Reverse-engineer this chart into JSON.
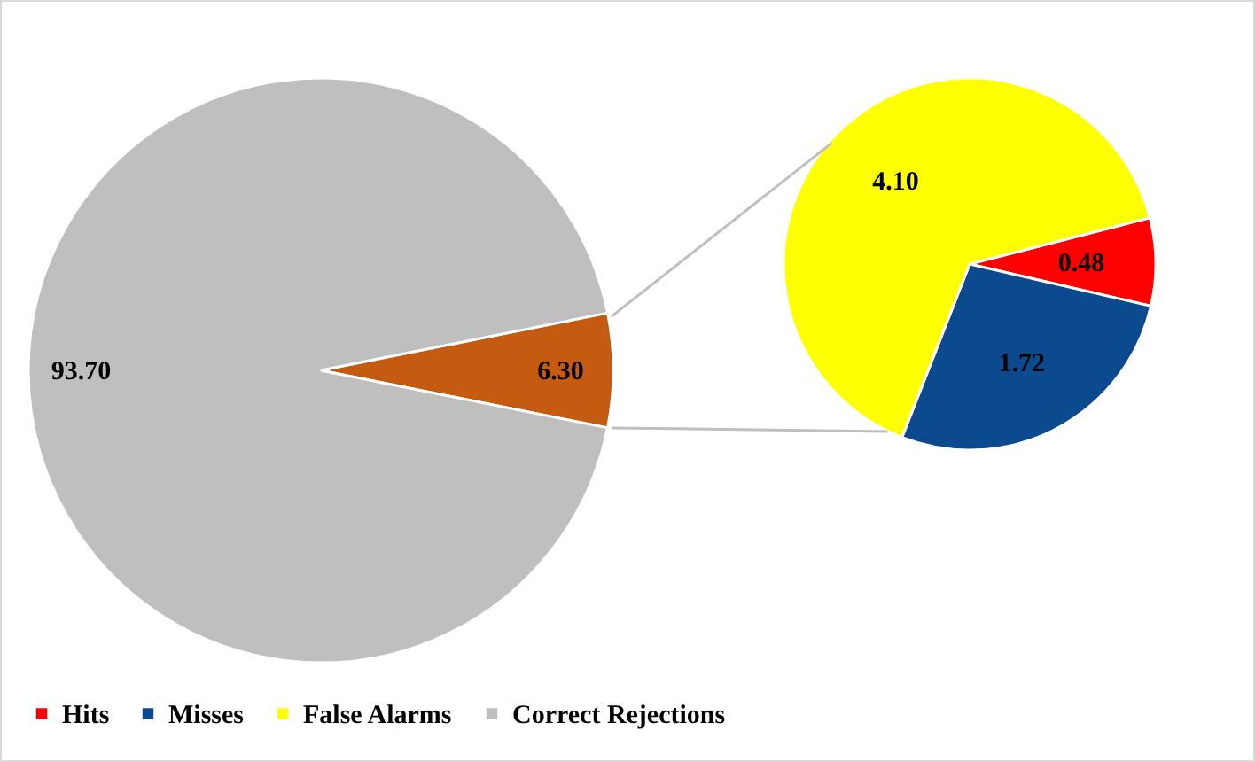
{
  "chart_data": [
    {
      "type": "pie",
      "categories": [
        null,
        "Correct Rejections"
      ],
      "values": [
        6.3,
        93.7
      ],
      "colors": [
        "#c55a11",
        "#bfbfbf"
      ],
      "value_labels": [
        "6.30",
        "93.70"
      ],
      "legend": "bottom"
    },
    {
      "type": "pie",
      "categories": [
        "Hits",
        "Misses",
        "False Alarms"
      ],
      "values": [
        0.48,
        1.72,
        4.1
      ],
      "colors": [
        "#ff0000",
        "#0b4a8f",
        "#ffff00"
      ],
      "value_labels": [
        "0.48",
        "1.72",
        "4.10"
      ],
      "legend": "bottom"
    }
  ]
}
